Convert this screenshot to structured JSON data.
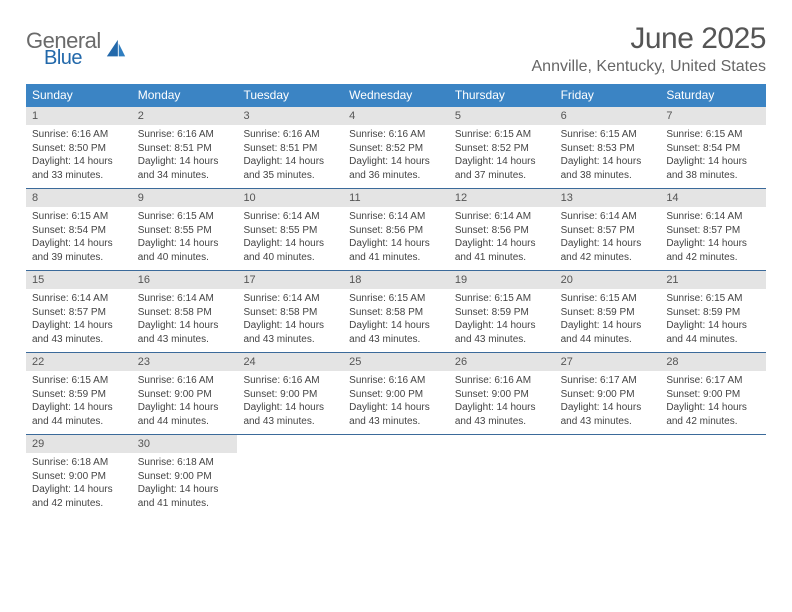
{
  "logo": {
    "line1": "General",
    "line2": "Blue"
  },
  "title": "June 2025",
  "subtitle": "Annville, Kentucky, United States",
  "colors": {
    "header_bg": "#3b84c4",
    "header_text": "#ffffff",
    "daynum_bg": "#e4e4e4",
    "rule": "#3b6a9a",
    "logo_gray": "#6a6a6a",
    "logo_blue": "#2268aa"
  },
  "day_names": [
    "Sunday",
    "Monday",
    "Tuesday",
    "Wednesday",
    "Thursday",
    "Friday",
    "Saturday"
  ],
  "weeks": [
    [
      {
        "n": "1",
        "sunrise": "6:16 AM",
        "sunset": "8:50 PM",
        "daylight": "14 hours and 33 minutes."
      },
      {
        "n": "2",
        "sunrise": "6:16 AM",
        "sunset": "8:51 PM",
        "daylight": "14 hours and 34 minutes."
      },
      {
        "n": "3",
        "sunrise": "6:16 AM",
        "sunset": "8:51 PM",
        "daylight": "14 hours and 35 minutes."
      },
      {
        "n": "4",
        "sunrise": "6:16 AM",
        "sunset": "8:52 PM",
        "daylight": "14 hours and 36 minutes."
      },
      {
        "n": "5",
        "sunrise": "6:15 AM",
        "sunset": "8:52 PM",
        "daylight": "14 hours and 37 minutes."
      },
      {
        "n": "6",
        "sunrise": "6:15 AM",
        "sunset": "8:53 PM",
        "daylight": "14 hours and 38 minutes."
      },
      {
        "n": "7",
        "sunrise": "6:15 AM",
        "sunset": "8:54 PM",
        "daylight": "14 hours and 38 minutes."
      }
    ],
    [
      {
        "n": "8",
        "sunrise": "6:15 AM",
        "sunset": "8:54 PM",
        "daylight": "14 hours and 39 minutes."
      },
      {
        "n": "9",
        "sunrise": "6:15 AM",
        "sunset": "8:55 PM",
        "daylight": "14 hours and 40 minutes."
      },
      {
        "n": "10",
        "sunrise": "6:14 AM",
        "sunset": "8:55 PM",
        "daylight": "14 hours and 40 minutes."
      },
      {
        "n": "11",
        "sunrise": "6:14 AM",
        "sunset": "8:56 PM",
        "daylight": "14 hours and 41 minutes."
      },
      {
        "n": "12",
        "sunrise": "6:14 AM",
        "sunset": "8:56 PM",
        "daylight": "14 hours and 41 minutes."
      },
      {
        "n": "13",
        "sunrise": "6:14 AM",
        "sunset": "8:57 PM",
        "daylight": "14 hours and 42 minutes."
      },
      {
        "n": "14",
        "sunrise": "6:14 AM",
        "sunset": "8:57 PM",
        "daylight": "14 hours and 42 minutes."
      }
    ],
    [
      {
        "n": "15",
        "sunrise": "6:14 AM",
        "sunset": "8:57 PM",
        "daylight": "14 hours and 43 minutes."
      },
      {
        "n": "16",
        "sunrise": "6:14 AM",
        "sunset": "8:58 PM",
        "daylight": "14 hours and 43 minutes."
      },
      {
        "n": "17",
        "sunrise": "6:14 AM",
        "sunset": "8:58 PM",
        "daylight": "14 hours and 43 minutes."
      },
      {
        "n": "18",
        "sunrise": "6:15 AM",
        "sunset": "8:58 PM",
        "daylight": "14 hours and 43 minutes."
      },
      {
        "n": "19",
        "sunrise": "6:15 AM",
        "sunset": "8:59 PM",
        "daylight": "14 hours and 43 minutes."
      },
      {
        "n": "20",
        "sunrise": "6:15 AM",
        "sunset": "8:59 PM",
        "daylight": "14 hours and 44 minutes."
      },
      {
        "n": "21",
        "sunrise": "6:15 AM",
        "sunset": "8:59 PM",
        "daylight": "14 hours and 44 minutes."
      }
    ],
    [
      {
        "n": "22",
        "sunrise": "6:15 AM",
        "sunset": "8:59 PM",
        "daylight": "14 hours and 44 minutes."
      },
      {
        "n": "23",
        "sunrise": "6:16 AM",
        "sunset": "9:00 PM",
        "daylight": "14 hours and 44 minutes."
      },
      {
        "n": "24",
        "sunrise": "6:16 AM",
        "sunset": "9:00 PM",
        "daylight": "14 hours and 43 minutes."
      },
      {
        "n": "25",
        "sunrise": "6:16 AM",
        "sunset": "9:00 PM",
        "daylight": "14 hours and 43 minutes."
      },
      {
        "n": "26",
        "sunrise": "6:16 AM",
        "sunset": "9:00 PM",
        "daylight": "14 hours and 43 minutes."
      },
      {
        "n": "27",
        "sunrise": "6:17 AM",
        "sunset": "9:00 PM",
        "daylight": "14 hours and 43 minutes."
      },
      {
        "n": "28",
        "sunrise": "6:17 AM",
        "sunset": "9:00 PM",
        "daylight": "14 hours and 42 minutes."
      }
    ],
    [
      {
        "n": "29",
        "sunrise": "6:18 AM",
        "sunset": "9:00 PM",
        "daylight": "14 hours and 42 minutes."
      },
      {
        "n": "30",
        "sunrise": "6:18 AM",
        "sunset": "9:00 PM",
        "daylight": "14 hours and 41 minutes."
      },
      null,
      null,
      null,
      null,
      null
    ]
  ],
  "labels": {
    "sunrise": "Sunrise:",
    "sunset": "Sunset:",
    "daylight": "Daylight:"
  }
}
